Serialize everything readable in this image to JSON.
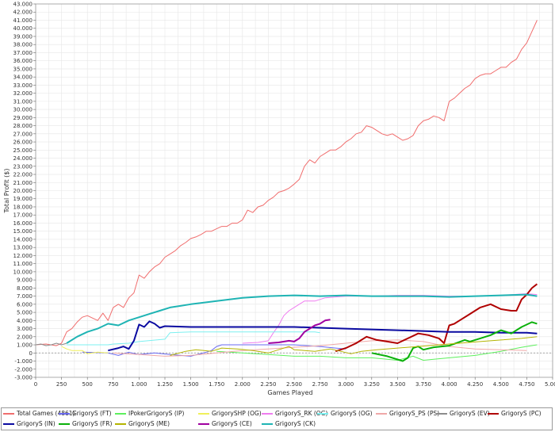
{
  "chart_data": {
    "type": "line",
    "xlabel": "Games Played",
    "ylabel": "Total Profit ($)",
    "xlim": [
      0,
      5000
    ],
    "ylim": [
      -3,
      43
    ],
    "xticks": [
      0,
      250,
      500,
      750,
      1000,
      1250,
      1500,
      1750,
      2000,
      2250,
      2500,
      2750,
      3000,
      3250,
      3500,
      3750,
      4000,
      4250,
      4500,
      4750,
      5000
    ],
    "xtick_labels": [
      "0",
      "250",
      "500",
      "750",
      "1.000",
      "1.250",
      "1.500",
      "1.750",
      "2.000",
      "2.250",
      "2.500",
      "2.750",
      "3.000",
      "3.250",
      "3.500",
      "3.750",
      "4.000",
      "4.250",
      "4.500",
      "4.750",
      "5.000"
    ],
    "yticks": [
      -3,
      -2,
      -1,
      0,
      1,
      2,
      3,
      4,
      5,
      6,
      7,
      8,
      9,
      10,
      11,
      12,
      13,
      14,
      15,
      16,
      17,
      18,
      19,
      20,
      21,
      22,
      23,
      24,
      25,
      26,
      27,
      28,
      29,
      30,
      31,
      32,
      33,
      34,
      35,
      36,
      37,
      38,
      39,
      40,
      41,
      42,
      43
    ],
    "ytick_labels": [
      "-3.000",
      "-2.000",
      "-1.000",
      "0",
      "1.000",
      "2.000",
      "3.000",
      "4.000",
      "5.000",
      "6.000",
      "7.000",
      "8.000",
      "9.000",
      "10.000",
      "11.000",
      "12.000",
      "13.000",
      "14.000",
      "15.000",
      "16.000",
      "17.000",
      "18.000",
      "19.000",
      "20.000",
      "21.000",
      "22.000",
      "23.000",
      "24.000",
      "25.000",
      "26.000",
      "27.000",
      "28.000",
      "29.000",
      "30.000",
      "31.000",
      "32.000",
      "33.000",
      "34.000",
      "35.000",
      "36.000",
      "37.000",
      "38.000",
      "39.000",
      "40.000",
      "41.000",
      "42.000",
      "43.000"
    ],
    "grid": true,
    "legend_position": "bottom",
    "series": [
      {
        "name": "Total Games (4861)",
        "color": "#f06d6d",
        "width": 1,
        "x": [
          0,
          100,
          200,
          250,
          300,
          350,
          400,
          450,
          500,
          600,
          650,
          700,
          750,
          800,
          850,
          900,
          950,
          1000,
          1050,
          1100,
          1150,
          1200,
          1250,
          1300,
          1350,
          1400,
          1450,
          1500,
          1550,
          1600,
          1650,
          1700,
          1750,
          1800,
          1850,
          1900,
          1950,
          2000,
          2050,
          2100,
          2150,
          2200,
          2250,
          2300,
          2350,
          2400,
          2450,
          2500,
          2550,
          2600,
          2650,
          2700,
          2750,
          2800,
          2850,
          2900,
          2950,
          3000,
          3050,
          3100,
          3150,
          3200,
          3250,
          3300,
          3350,
          3400,
          3450,
          3500,
          3550,
          3600,
          3650,
          3700,
          3750,
          3800,
          3850,
          3900,
          3950,
          4000,
          4050,
          4100,
          4150,
          4200,
          4250,
          4300,
          4350,
          4400,
          4450,
          4500,
          4550,
          4600,
          4650,
          4700,
          4750,
          4800,
          4850
        ],
        "y": [
          1.0,
          1.1,
          0.9,
          1.2,
          2.6,
          3.0,
          3.8,
          4.4,
          4.6,
          4.0,
          4.9,
          4.0,
          5.6,
          6.0,
          5.6,
          6.8,
          7.4,
          9.6,
          9.2,
          10.0,
          10.6,
          11.0,
          11.8,
          12.2,
          12.6,
          13.2,
          13.6,
          14.1,
          14.3,
          14.6,
          15.0,
          15.0,
          15.3,
          15.6,
          15.6,
          16.0,
          16.0,
          16.4,
          17.6,
          17.3,
          18.0,
          18.2,
          18.8,
          19.2,
          19.8,
          20.0,
          20.3,
          20.8,
          21.4,
          23.0,
          23.8,
          23.4,
          24.2,
          24.6,
          25.0,
          25.0,
          25.4,
          26.0,
          26.4,
          27.0,
          27.2,
          28.0,
          27.8,
          27.4,
          27.0,
          26.8,
          27.0,
          26.6,
          26.2,
          26.4,
          26.8,
          28.0,
          28.6,
          28.8,
          29.2,
          29.0,
          28.6,
          31.0,
          31.4,
          32.0,
          32.6,
          33.0,
          33.8,
          34.2,
          34.4,
          34.4,
          34.8,
          35.2,
          35.2,
          35.8,
          36.2,
          37.4,
          38.2,
          39.6,
          41.0
        ]
      },
      {
        "name": "GrigoryS (FT)",
        "color": "#6a6af0",
        "width": 1,
        "x": [
          450,
          700,
          800,
          900,
          1000,
          1150,
          1300,
          1500,
          1650,
          1700,
          1750,
          1800,
          2000,
          2250,
          2500,
          2750,
          2900,
          3000
        ],
        "y": [
          0.1,
          0.0,
          -0.3,
          0.1,
          -0.2,
          0.0,
          -0.2,
          -0.4,
          0.1,
          0.3,
          0.8,
          1.0,
          1.0,
          1.0,
          1.0,
          0.8,
          0.6,
          0.5
        ]
      },
      {
        "name": "IPokerGrigoryS (IP)",
        "color": "#5df05d",
        "width": 1,
        "x": [
          1750,
          2000,
          2250,
          2500,
          2750,
          3000,
          3250,
          3500,
          3650,
          3750,
          4000,
          4250,
          4500,
          4700,
          4850
        ],
        "y": [
          0.2,
          0.0,
          -0.2,
          -0.4,
          -0.4,
          -0.6,
          -0.6,
          -0.9,
          -0.4,
          -0.9,
          -0.6,
          -0.3,
          0.2,
          0.7,
          1.0
        ]
      },
      {
        "name": "GrigorySHP (OG)",
        "color": "#f0f05a",
        "width": 1,
        "x": [
          250,
          300,
          350,
          450,
          500,
          600,
          700
        ],
        "y": [
          0.8,
          0.5,
          0.3,
          0.3,
          -0.1,
          0.1,
          0.0
        ]
      },
      {
        "name": "GrigoryS_RK (OG)",
        "color": "#f07cf0",
        "width": 1,
        "x": [
          2000,
          2150,
          2250,
          2300,
          2350,
          2400,
          2450,
          2500,
          2550,
          2600,
          2700,
          2800,
          2900,
          3000,
          3250,
          3500,
          3750,
          4000,
          4250,
          4500,
          4750,
          4850
        ],
        "y": [
          1.2,
          1.3,
          1.5,
          2.5,
          3.4,
          4.6,
          5.2,
          5.6,
          6.0,
          6.4,
          6.4,
          6.8,
          6.9,
          7.0,
          7.0,
          7.1,
          7.1,
          7.0,
          7.0,
          7.1,
          7.3,
          7.2
        ]
      },
      {
        "name": "GrigoryS (OG)",
        "color": "#7cf0f0",
        "width": 1,
        "x": [
          300,
          550,
          700,
          750,
          900,
          1000,
          1250,
          1300,
          1500,
          1750,
          2000,
          2250,
          2500,
          2700,
          2750
        ],
        "y": [
          1.0,
          1.0,
          1.0,
          1.1,
          1.2,
          1.4,
          1.7,
          2.5,
          2.6,
          2.6,
          2.6,
          2.6,
          2.6,
          2.6,
          2.5
        ]
      },
      {
        "name": "GrigoryS_PS (PS)",
        "color": "#f0a8a8",
        "width": 1,
        "x": [
          750,
          1000,
          1250,
          1500,
          1750,
          2000,
          2250,
          2500,
          2750,
          3000,
          3250,
          3500,
          3750,
          3900,
          4000,
          4250,
          4500,
          4750
        ],
        "y": [
          0.0,
          -0.2,
          -0.4,
          -0.3,
          0.0,
          0.3,
          0.5,
          0.7,
          0.9,
          1.2,
          1.5,
          1.6,
          1.4,
          1.0,
          0.8,
          0.5,
          0.4,
          0.3
        ]
      },
      {
        "name": "GrigoryS (EV)",
        "color": "#8c8c8c",
        "width": 1,
        "x": [
          0,
          50,
          100,
          150,
          200,
          250,
          300
        ],
        "y": [
          1.0,
          1.1,
          0.9,
          1.0,
          1.2,
          1.0,
          1.2
        ]
      },
      {
        "name": "GrigoryS (PC)",
        "color": "#b00000",
        "width": 2,
        "x": [
          2900,
          3000,
          3100,
          3200,
          3300,
          3400,
          3500,
          3600,
          3700,
          3800,
          3900,
          3950,
          4000,
          4050,
          4100,
          4200,
          4300,
          4400,
          4500,
          4600,
          4650,
          4700,
          4750,
          4800,
          4850
        ],
        "y": [
          0.2,
          0.6,
          1.2,
          2.0,
          1.6,
          1.4,
          1.2,
          1.8,
          2.4,
          2.2,
          1.8,
          1.2,
          3.4,
          3.6,
          4.0,
          4.8,
          5.6,
          6.0,
          5.4,
          5.2,
          5.2,
          6.6,
          7.2,
          8.0,
          8.5
        ]
      },
      {
        "name": "GrigoryS (IN)",
        "color": "#0a0aa0",
        "width": 2,
        "x": [
          700,
          800,
          850,
          900,
          950,
          1000,
          1050,
          1100,
          1150,
          1200,
          1250,
          1500,
          1750,
          2000,
          2250,
          2500,
          2750,
          3000,
          3250,
          3500,
          3750,
          4000,
          4250,
          4500,
          4750,
          4850
        ],
        "y": [
          0.3,
          0.6,
          0.8,
          0.5,
          1.5,
          3.5,
          3.2,
          3.9,
          3.6,
          3.1,
          3.3,
          3.2,
          3.2,
          3.2,
          3.2,
          3.2,
          3.1,
          3.0,
          2.9,
          2.8,
          2.7,
          2.6,
          2.6,
          2.5,
          2.5,
          2.4
        ]
      },
      {
        "name": "GrigoryS (FR)",
        "color": "#0ab00a",
        "width": 2,
        "x": [
          3250,
          3400,
          3550,
          3600,
          3650,
          3700,
          3750,
          3850,
          4000,
          4150,
          4200,
          4300,
          4400,
          4500,
          4600,
          4700,
          4800,
          4850
        ],
        "y": [
          0.0,
          -0.4,
          -1.0,
          -0.6,
          0.6,
          0.8,
          0.4,
          0.7,
          0.9,
          1.6,
          1.4,
          1.8,
          2.2,
          2.8,
          2.4,
          3.2,
          3.8,
          3.6
        ]
      },
      {
        "name": "GrigoryS (ME)",
        "color": "#b4b400",
        "width": 1,
        "x": [
          1300,
          1450,
          1550,
          1700,
          1800,
          1950,
          2100,
          2250,
          2350,
          2450,
          2500,
          2700,
          2850,
          2950,
          3050,
          3150,
          3300,
          3500,
          3700,
          3900,
          4100,
          4300,
          4500,
          4700,
          4850
        ],
        "y": [
          -0.3,
          0.2,
          0.4,
          0.2,
          0.6,
          0.5,
          0.3,
          0.0,
          0.4,
          0.8,
          0.4,
          0.2,
          0.5,
          0.2,
          -0.1,
          0.2,
          0.4,
          0.6,
          0.8,
          1.0,
          1.2,
          1.4,
          1.6,
          1.8,
          2.0
        ]
      },
      {
        "name": "GrigoryS (CE)",
        "color": "#a000a0",
        "width": 2,
        "x": [
          2250,
          2350,
          2450,
          2500,
          2550,
          2600,
          2650,
          2700,
          2750,
          2800,
          2850
        ],
        "y": [
          1.2,
          1.3,
          1.5,
          1.4,
          1.8,
          2.6,
          3.0,
          3.4,
          3.6,
          4.0,
          4.1
        ]
      },
      {
        "name": "GrigoryS (CK)",
        "color": "#1fb4b4",
        "width": 2,
        "x": [
          300,
          400,
          500,
          600,
          700,
          800,
          900,
          1000,
          1100,
          1200,
          1300,
          1400,
          1500,
          1750,
          2000,
          2250,
          2500,
          2750,
          3000,
          3250,
          3500,
          3750,
          4000,
          4250,
          4500,
          4750,
          4850
        ],
        "y": [
          1.2,
          2.0,
          2.6,
          3.0,
          3.6,
          3.4,
          4.0,
          4.4,
          4.8,
          5.2,
          5.6,
          5.8,
          6.0,
          6.4,
          6.8,
          7.0,
          7.1,
          7.0,
          7.1,
          7.0,
          7.0,
          7.0,
          6.9,
          7.0,
          7.1,
          7.2,
          7.0
        ]
      }
    ]
  }
}
